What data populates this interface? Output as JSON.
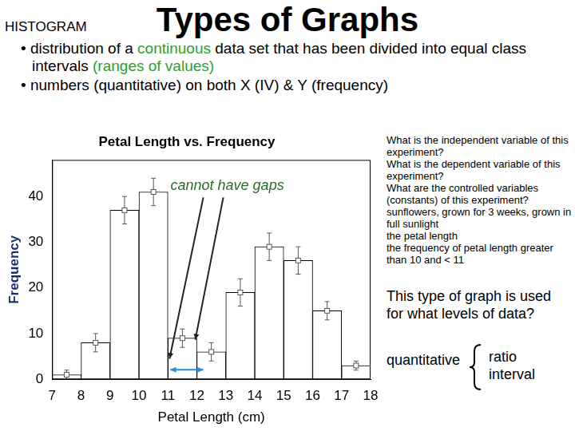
{
  "slide": {
    "title": "Types of Graphs",
    "heading": "HISTOGRAM",
    "bullet": "•",
    "bullets": [
      [
        {
          "text": "distribution of a "
        },
        {
          "text": "continuous",
          "color": "#2e9e2e"
        },
        {
          "text": " data set that has been divided into equal class intervals "
        },
        {
          "text": "(ranges of values)",
          "color": "#2e9e2e"
        }
      ],
      [
        {
          "text": "numbers (quantitative) on both X (IV) & Y (frequency)"
        }
      ]
    ],
    "questions": [
      "What is the independent variable of this experiment?",
      "What is the dependent variable of this experiment?",
      "What are the controlled variables (constants) of this experiment?",
      "sunflowers, grown for 3 weeks, grown in full sunlight",
      "the petal length",
      "the frequency of petal length greater than 10 and < 11"
    ],
    "prompt": "This type of graph is used for what levels of data?",
    "answer": "quantitative",
    "levels": [
      "ratio",
      "interval"
    ]
  },
  "chart_data": {
    "type": "histogram",
    "title": "Petal Length vs. Frequency",
    "x_label": "Petal Length (cm)",
    "y_label": "Frequency",
    "bins": [
      7,
      8,
      9,
      10,
      11,
      12,
      13,
      14,
      15,
      16,
      17,
      18
    ],
    "values": [
      1,
      8,
      37,
      41,
      9,
      6,
      19,
      29,
      26,
      15,
      3
    ],
    "errors": [
      1,
      2,
      3,
      3,
      2,
      2,
      3,
      3,
      3,
      2,
      1
    ],
    "color": "#ffffff",
    "xlim": [
      7,
      18
    ],
    "xticks": [
      7,
      8,
      9,
      10,
      11,
      12,
      13,
      14,
      15,
      16,
      17,
      18
    ],
    "ylim": [
      0,
      48
    ],
    "yticks": [
      0,
      10,
      20,
      30,
      40
    ],
    "grid": false,
    "annotations": [
      "cannot have gaps"
    ]
  }
}
